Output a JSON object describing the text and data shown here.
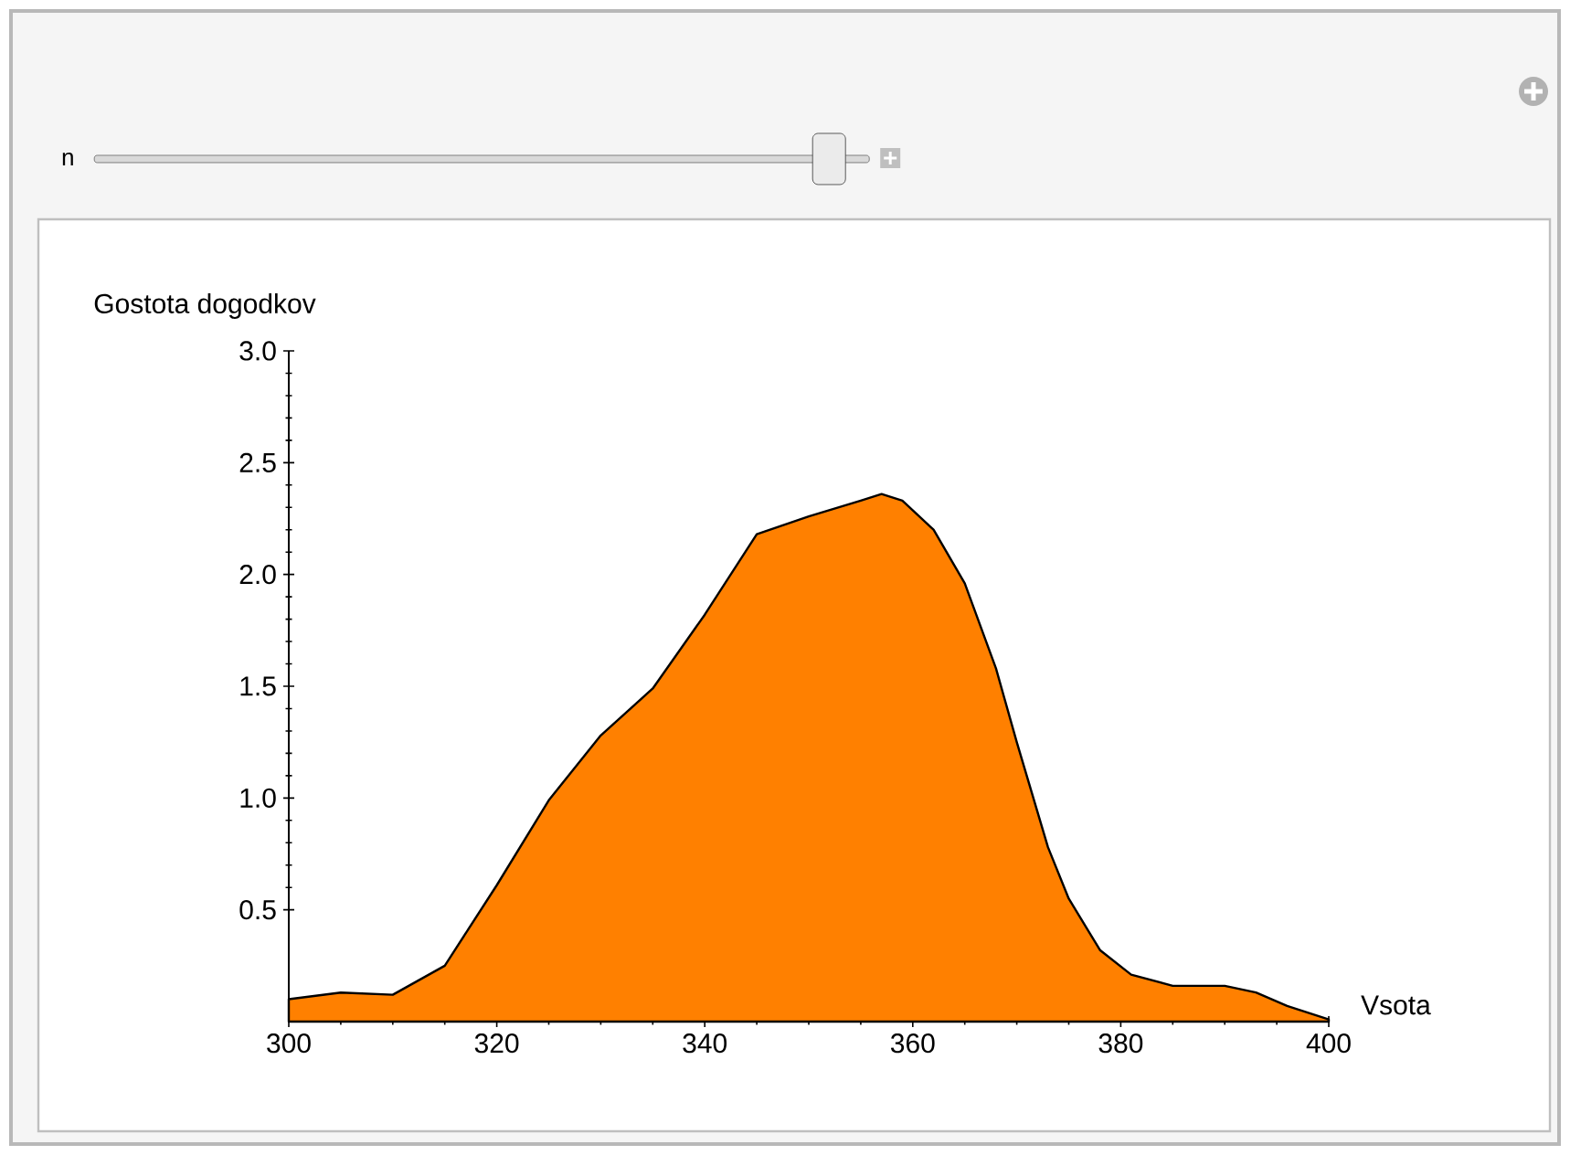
{
  "chart_data": {
    "type": "area",
    "xlabel": "Vsota",
    "ylabel": "Gostota dogodkov",
    "annotations": [
      "n"
    ],
    "x": [
      300,
      305,
      310,
      315,
      320,
      325,
      330,
      335,
      340,
      345,
      350,
      355,
      357,
      359,
      362,
      365,
      368,
      370,
      373,
      375,
      378,
      381,
      385,
      390,
      393,
      396,
      400
    ],
    "series": [
      {
        "color": "#ff8000",
        "values": [
          0.1,
          0.13,
          0.12,
          0.25,
          0.61,
          0.99,
          1.28,
          1.49,
          1.82,
          2.18,
          2.26,
          2.33,
          2.36,
          2.33,
          2.2,
          1.96,
          1.58,
          1.25,
          0.78,
          0.55,
          0.32,
          0.21,
          0.16,
          0.16,
          0.13,
          0.07,
          0.01
        ]
      }
    ],
    "xlim": [
      300,
      400
    ],
    "ylim": [
      0,
      3
    ],
    "xticks": [
      300,
      320,
      340,
      360,
      380,
      400
    ],
    "yticks": [
      0.5,
      {
        "value": 1,
        "label": "1.0"
      },
      1.5,
      {
        "value": 2,
        "label": "2.0"
      },
      2.5,
      {
        "value": 3,
        "label": "3.0"
      }
    ],
    "grid": false
  }
}
